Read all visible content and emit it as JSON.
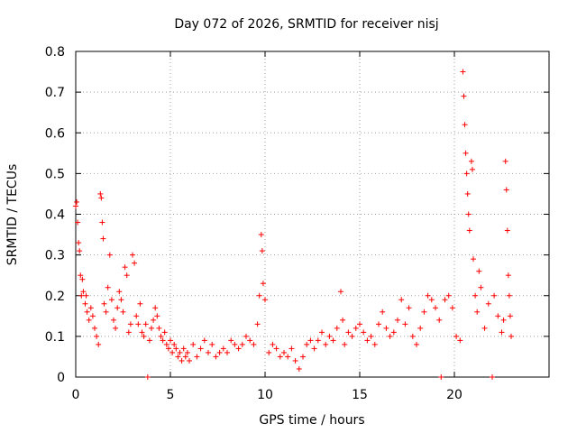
{
  "chart_data": {
    "type": "scatter",
    "title": "Day 072 of 2026, SRMTID for receiver nisj",
    "xlabel": "GPS time / hours",
    "ylabel": "SRMTID / TECUs",
    "xlim": [
      0,
      25
    ],
    "ylim": [
      0,
      0.8
    ],
    "x_ticks": [
      0,
      5,
      10,
      15,
      20
    ],
    "x_tick_labels": [
      "0",
      "5",
      "10",
      "15",
      "20"
    ],
    "y_ticks": [
      0,
      0.1,
      0.2,
      0.3,
      0.4,
      0.5,
      0.6,
      0.7,
      0.8
    ],
    "y_tick_labels": [
      "0",
      "0.1",
      "0.2",
      "0.3",
      "0.4",
      "0.5",
      "0.6",
      "0.7",
      "0.8"
    ],
    "grid": true,
    "marker": "+",
    "color": "#ff0000",
    "series": [
      {
        "name": "SRMTID",
        "points": [
          [
            0.0,
            0.42
          ],
          [
            0.05,
            0.43
          ],
          [
            0.1,
            0.38
          ],
          [
            0.15,
            0.33
          ],
          [
            0.2,
            0.31
          ],
          [
            0.25,
            0.25
          ],
          [
            0.3,
            0.2
          ],
          [
            0.35,
            0.24
          ],
          [
            0.4,
            0.21
          ],
          [
            0.5,
            0.18
          ],
          [
            0.55,
            0.2
          ],
          [
            0.6,
            0.16
          ],
          [
            0.7,
            0.14
          ],
          [
            0.8,
            0.17
          ],
          [
            0.9,
            0.15
          ],
          [
            1.0,
            0.12
          ],
          [
            1.1,
            0.1
          ],
          [
            1.2,
            0.08
          ],
          [
            1.3,
            0.45
          ],
          [
            1.35,
            0.44
          ],
          [
            1.4,
            0.38
          ],
          [
            1.45,
            0.34
          ],
          [
            1.5,
            0.18
          ],
          [
            1.6,
            0.16
          ],
          [
            1.7,
            0.22
          ],
          [
            1.8,
            0.3
          ],
          [
            1.9,
            0.19
          ],
          [
            2.0,
            0.14
          ],
          [
            2.1,
            0.12
          ],
          [
            2.2,
            0.17
          ],
          [
            2.3,
            0.21
          ],
          [
            2.4,
            0.19
          ],
          [
            2.5,
            0.16
          ],
          [
            2.6,
            0.27
          ],
          [
            2.7,
            0.25
          ],
          [
            2.8,
            0.11
          ],
          [
            2.9,
            0.13
          ],
          [
            3.0,
            0.3
          ],
          [
            3.1,
            0.28
          ],
          [
            3.2,
            0.15
          ],
          [
            3.3,
            0.13
          ],
          [
            3.4,
            0.18
          ],
          [
            3.5,
            0.11
          ],
          [
            3.6,
            0.1
          ],
          [
            3.7,
            0.13
          ],
          [
            3.8,
            0.0
          ],
          [
            3.9,
            0.09
          ],
          [
            4.0,
            0.12
          ],
          [
            4.1,
            0.14
          ],
          [
            4.2,
            0.17
          ],
          [
            4.3,
            0.15
          ],
          [
            4.4,
            0.12
          ],
          [
            4.5,
            0.1
          ],
          [
            4.6,
            0.09
          ],
          [
            4.7,
            0.11
          ],
          [
            4.8,
            0.08
          ],
          [
            4.9,
            0.07
          ],
          [
            5.0,
            0.09
          ],
          [
            5.1,
            0.06
          ],
          [
            5.2,
            0.08
          ],
          [
            5.3,
            0.07
          ],
          [
            5.4,
            0.05
          ],
          [
            5.5,
            0.06
          ],
          [
            5.6,
            0.04
          ],
          [
            5.7,
            0.07
          ],
          [
            5.8,
            0.05
          ],
          [
            5.9,
            0.06
          ],
          [
            6.0,
            0.04
          ],
          [
            6.2,
            0.08
          ],
          [
            6.4,
            0.05
          ],
          [
            6.6,
            0.07
          ],
          [
            6.8,
            0.09
          ],
          [
            7.0,
            0.06
          ],
          [
            7.2,
            0.08
          ],
          [
            7.4,
            0.05
          ],
          [
            7.6,
            0.06
          ],
          [
            7.8,
            0.07
          ],
          [
            8.0,
            0.06
          ],
          [
            8.2,
            0.09
          ],
          [
            8.4,
            0.08
          ],
          [
            8.6,
            0.07
          ],
          [
            8.8,
            0.08
          ],
          [
            9.0,
            0.1
          ],
          [
            9.2,
            0.09
          ],
          [
            9.4,
            0.08
          ],
          [
            9.6,
            0.13
          ],
          [
            9.7,
            0.2
          ],
          [
            9.8,
            0.35
          ],
          [
            9.85,
            0.31
          ],
          [
            9.9,
            0.23
          ],
          [
            10.0,
            0.19
          ],
          [
            10.2,
            0.06
          ],
          [
            10.4,
            0.08
          ],
          [
            10.6,
            0.07
          ],
          [
            10.8,
            0.05
          ],
          [
            11.0,
            0.06
          ],
          [
            11.2,
            0.05
          ],
          [
            11.4,
            0.07
          ],
          [
            11.6,
            0.04
          ],
          [
            11.8,
            0.02
          ],
          [
            12.0,
            0.05
          ],
          [
            12.2,
            0.08
          ],
          [
            12.4,
            0.09
          ],
          [
            12.6,
            0.07
          ],
          [
            12.8,
            0.09
          ],
          [
            13.0,
            0.11
          ],
          [
            13.2,
            0.08
          ],
          [
            13.4,
            0.1
          ],
          [
            13.6,
            0.09
          ],
          [
            13.8,
            0.12
          ],
          [
            14.0,
            0.21
          ],
          [
            14.1,
            0.14
          ],
          [
            14.2,
            0.08
          ],
          [
            14.4,
            0.11
          ],
          [
            14.6,
            0.1
          ],
          [
            14.8,
            0.12
          ],
          [
            15.0,
            0.13
          ],
          [
            15.2,
            0.11
          ],
          [
            15.4,
            0.09
          ],
          [
            15.6,
            0.1
          ],
          [
            15.8,
            0.08
          ],
          [
            16.0,
            0.13
          ],
          [
            16.2,
            0.16
          ],
          [
            16.4,
            0.12
          ],
          [
            16.6,
            0.1
          ],
          [
            16.8,
            0.11
          ],
          [
            17.0,
            0.14
          ],
          [
            17.2,
            0.19
          ],
          [
            17.4,
            0.13
          ],
          [
            17.6,
            0.17
          ],
          [
            17.8,
            0.1
          ],
          [
            18.0,
            0.08
          ],
          [
            18.2,
            0.12
          ],
          [
            18.4,
            0.16
          ],
          [
            18.6,
            0.2
          ],
          [
            18.8,
            0.19
          ],
          [
            19.0,
            0.17
          ],
          [
            19.2,
            0.14
          ],
          [
            19.3,
            0.0
          ],
          [
            19.5,
            0.19
          ],
          [
            19.7,
            0.2
          ],
          [
            19.9,
            0.17
          ],
          [
            20.1,
            0.1
          ],
          [
            20.3,
            0.09
          ],
          [
            20.45,
            0.75
          ],
          [
            20.5,
            0.69
          ],
          [
            20.55,
            0.62
          ],
          [
            20.6,
            0.55
          ],
          [
            20.65,
            0.5
          ],
          [
            20.7,
            0.45
          ],
          [
            20.75,
            0.4
          ],
          [
            20.8,
            0.36
          ],
          [
            20.9,
            0.53
          ],
          [
            20.95,
            0.51
          ],
          [
            21.0,
            0.29
          ],
          [
            21.1,
            0.2
          ],
          [
            21.2,
            0.16
          ],
          [
            21.3,
            0.26
          ],
          [
            21.4,
            0.22
          ],
          [
            21.6,
            0.12
          ],
          [
            21.8,
            0.18
          ],
          [
            22.0,
            0.0
          ],
          [
            22.1,
            0.2
          ],
          [
            22.3,
            0.15
          ],
          [
            22.5,
            0.11
          ],
          [
            22.6,
            0.14
          ],
          [
            22.7,
            0.53
          ],
          [
            22.75,
            0.46
          ],
          [
            22.8,
            0.36
          ],
          [
            22.85,
            0.25
          ],
          [
            22.9,
            0.2
          ],
          [
            22.95,
            0.15
          ],
          [
            23.0,
            0.1
          ]
        ]
      }
    ]
  }
}
